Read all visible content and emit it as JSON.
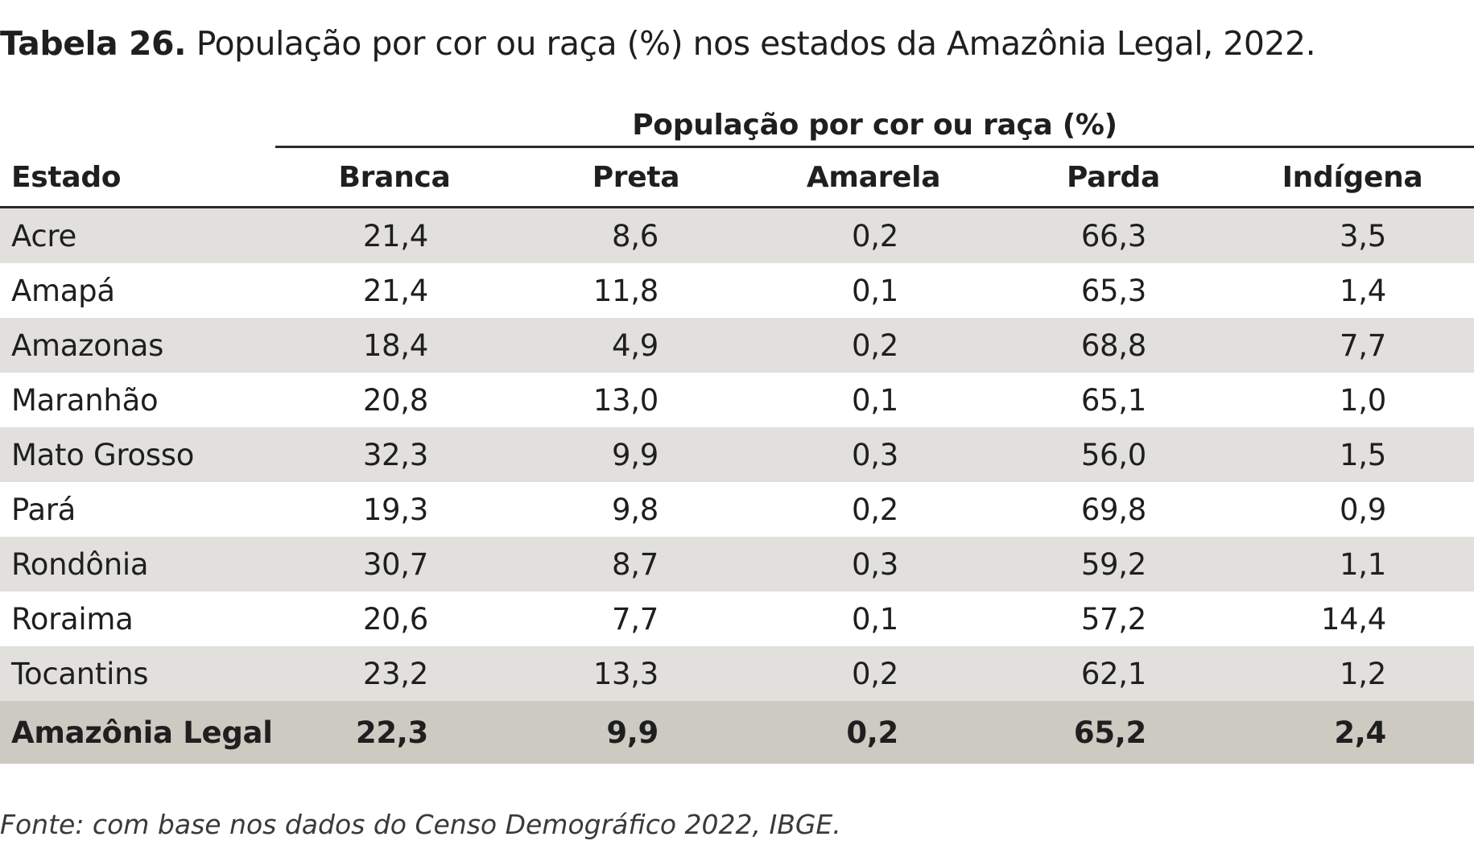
{
  "caption": {
    "label": "Tabela 26.",
    "text": "População por cor ou raça (%) nos estados da Amazônia Legal, 2022."
  },
  "group_header": "População por cor ou raça (%)",
  "headers": {
    "estado": "Estado",
    "branca": "Branca",
    "preta": "Preta",
    "amarela": "Amarela",
    "parda": "Parda",
    "indigena": "Indígena"
  },
  "rows": [
    {
      "estado": "Acre",
      "branca": "21,4",
      "preta": "8,6",
      "amarela": "0,2",
      "parda": "66,3",
      "indigena": "3,5"
    },
    {
      "estado": "Amapá",
      "branca": "21,4",
      "preta": "11,8",
      "amarela": "0,1",
      "parda": "65,3",
      "indigena": "1,4"
    },
    {
      "estado": "Amazonas",
      "branca": "18,4",
      "preta": "4,9",
      "amarela": "0,2",
      "parda": "68,8",
      "indigena": "7,7"
    },
    {
      "estado": "Maranhão",
      "branca": "20,8",
      "preta": "13,0",
      "amarela": "0,1",
      "parda": "65,1",
      "indigena": "1,0"
    },
    {
      "estado": "Mato Grosso",
      "branca": "32,3",
      "preta": "9,9",
      "amarela": "0,3",
      "parda": "56,0",
      "indigena": "1,5"
    },
    {
      "estado": "Pará",
      "branca": "19,3",
      "preta": "9,8",
      "amarela": "0,2",
      "parda": "69,8",
      "indigena": "0,9"
    },
    {
      "estado": "Rondônia",
      "branca": "30,7",
      "preta": "8,7",
      "amarela": "0,3",
      "parda": "59,2",
      "indigena": "1,1"
    },
    {
      "estado": "Roraima",
      "branca": "20,6",
      "preta": "7,7",
      "amarela": "0,1",
      "parda": "57,2",
      "indigena": "14,4"
    },
    {
      "estado": "Tocantins",
      "branca": "23,2",
      "preta": "13,3",
      "amarela": "0,2",
      "parda": "62,1",
      "indigena": "1,2"
    }
  ],
  "total": {
    "estado": "Amazônia Legal",
    "branca": "22,3",
    "preta": "9,9",
    "amarela": "0,2",
    "parda": "65,2",
    "indigena": "2,4"
  },
  "source": "Fonte: com base nos dados do Censo Demográfico 2022, IBGE.",
  "colors": {
    "shaded_row": "#e1e0dc",
    "total_row": "#cccac1",
    "rule": "#2a2a2a"
  }
}
